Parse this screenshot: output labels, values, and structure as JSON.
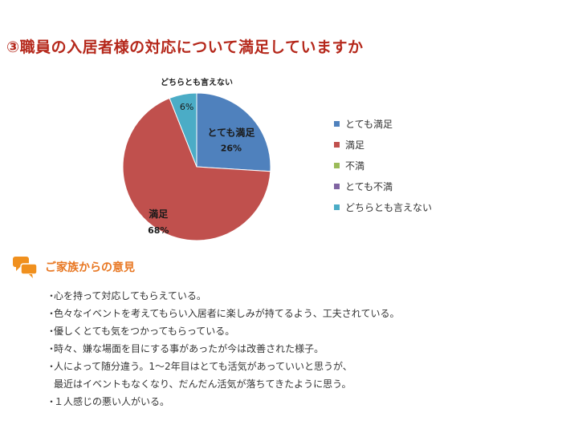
{
  "title": "③職員の入居者様の対応について満足していますか",
  "colors": {
    "title": "#b5281b",
    "section": "#e87722",
    "icon": "#f0901e"
  },
  "chart_data": {
    "type": "pie",
    "title": "",
    "legend_position": "right",
    "slices": [
      {
        "label": "とても満足",
        "value": 26,
        "color": "#4f81bd",
        "data_label": "とても満足",
        "value_label": "26%",
        "label_color": "#1a1a1a"
      },
      {
        "label": "満足",
        "value": 68,
        "color": "#c0504d",
        "data_label": "満足",
        "value_label": "68%",
        "label_color": "#1a1a1a"
      },
      {
        "label": "不満",
        "value": 0,
        "color": "#9bbb59",
        "data_label": "",
        "value_label": "",
        "label_color": "#1a1a1a"
      },
      {
        "label": "とても不満",
        "value": 0,
        "color": "#8064a2",
        "data_label": "",
        "value_label": "",
        "label_color": "#1a1a1a"
      },
      {
        "label": "どちらとも言えない",
        "value": 6,
        "color": "#4bacc6",
        "data_label": "どちらとも言えない",
        "value_label": "6%",
        "label_color": "#1a1a1a"
      }
    ]
  },
  "family_section": {
    "icon": "speech-bubbles-icon",
    "title": "ご家族からの意見",
    "comments": [
      {
        "bullet": "・",
        "text": "心を持って対応してもらえている。",
        "cont": ""
      },
      {
        "bullet": "・",
        "text": "色々なイベントを考えてもらい入居者に楽しみが持てるよう、工夫されている。",
        "cont": ""
      },
      {
        "bullet": "・",
        "text": "優しくとても気をつかってもらっている。",
        "cont": ""
      },
      {
        "bullet": "・",
        "text": "時々、嫌な場面を目にする事があったが今は改善された様子。",
        "cont": ""
      },
      {
        "bullet": "・",
        "text": "人によって随分違う。1～2年目はとても活気があっていいと思うが、",
        "cont": "最近はイベントもなくなり、だんだん活気が落ちてきたように思う。"
      },
      {
        "bullet": "・",
        "text": "１人感じの悪い人がいる。",
        "cont": ""
      }
    ]
  }
}
